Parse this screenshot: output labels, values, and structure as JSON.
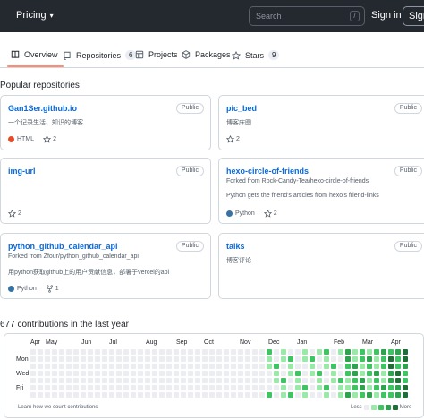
{
  "header": {
    "pricing_label": "Pricing",
    "search_placeholder": "Search",
    "search_shortcut": "/",
    "signin_label": "Sign in",
    "signup_label": "Sign"
  },
  "tabs": [
    {
      "label": "Overview",
      "icon": "book-icon"
    },
    {
      "label": "Repositories",
      "count": "6",
      "icon": "repo-icon"
    },
    {
      "label": "Projects",
      "icon": "table-icon"
    },
    {
      "label": "Packages",
      "icon": "package-icon"
    },
    {
      "label": "Stars",
      "count": "9",
      "icon": "star-icon"
    }
  ],
  "popular_title": "Popular repositories",
  "repos": [
    {
      "name": "Gan1Ser.github.io",
      "badge": "Public",
      "forked_from": "",
      "desc": "一个记录生活、知识的博客",
      "lang": "HTML",
      "lang_color": "#e34c26",
      "stars": "2",
      "forks": ""
    },
    {
      "name": "pic_bed",
      "badge": "Public",
      "forked_from": "",
      "desc": "博客床图",
      "lang": "",
      "lang_color": "",
      "stars": "2",
      "forks": ""
    },
    {
      "name": "img-url",
      "badge": "Public",
      "forked_from": "",
      "desc": "",
      "lang": "",
      "lang_color": "",
      "stars": "2",
      "forks": ""
    },
    {
      "name": "hexo-circle-of-friends",
      "badge": "Public",
      "forked_from": "Forked from Rock-Candy-Tea/hexo-circle-of-friends",
      "desc": "Python gets the friend's articles from hexo's friend-links",
      "lang": "Python",
      "lang_color": "#3572a5",
      "stars": "2",
      "forks": ""
    },
    {
      "name": "python_github_calendar_api",
      "badge": "Public",
      "forked_from": "Forked from Zfour/python_github_calendar_api",
      "desc": "用python获取github上的用户贡献信息，部署于vercel的api",
      "lang": "Python",
      "lang_color": "#3572a5",
      "stars": "",
      "forks": "1"
    },
    {
      "name": "talks",
      "badge": "Public",
      "forked_from": "",
      "desc": "博客评论",
      "lang": "",
      "lang_color": "",
      "stars": "",
      "forks": ""
    }
  ],
  "contributions": {
    "title": "677 contributions in the last year",
    "months": [
      "Apr",
      "May",
      "Jun",
      "Jul",
      "Aug",
      "Sep",
      "Oct",
      "Nov",
      "Dec",
      "Jan",
      "Feb",
      "Mar",
      "Apr"
    ],
    "days": [
      "Mon",
      "Wed",
      "Fri"
    ],
    "learn_link": "Learn how we count contributions",
    "legend_less": "Less",
    "legend_more": "More",
    "colors": [
      "#ebedf0",
      "#9be9a8",
      "#40c463",
      "#30a14e",
      "#216e39"
    ]
  }
}
